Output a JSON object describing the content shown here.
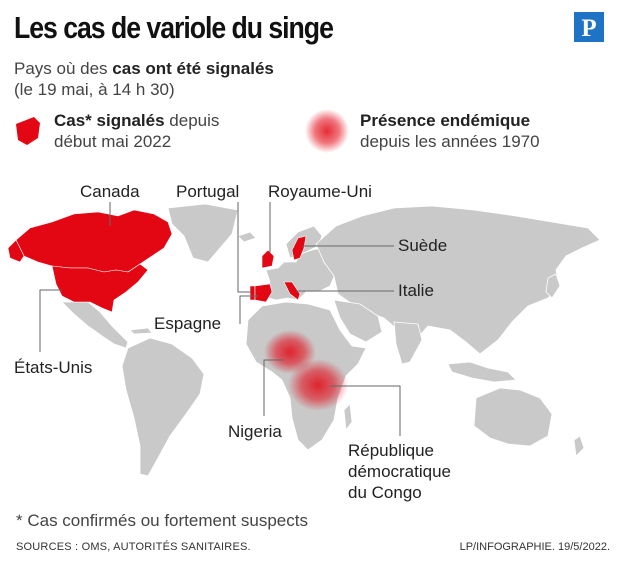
{
  "header": {
    "title": "Les cas de variole du singe",
    "subtitle_prefix": "Pays où des ",
    "subtitle_bold": "cas ont été signalés",
    "subtitle_line2": "(le 19 mai, à 14 h 30)",
    "logo_letter": "P"
  },
  "legend": {
    "cases_bold": "Cas* signalés",
    "cases_rest": " depuis",
    "cases_line2": "début mai 2022",
    "endemic_bold": "Présence endémique",
    "endemic_line2": "depuis les années 1970"
  },
  "countries": {
    "canada": "Canada",
    "portugal": "Portugal",
    "royaume_uni": "Royaume-Uni",
    "suede": "Suède",
    "italie": "Italie",
    "espagne": "Espagne",
    "etats_unis": "États-Unis",
    "nigeria": "Nigeria",
    "rdc_line1": "République",
    "rdc_line2": "démocratique",
    "rdc_line3": "du Congo"
  },
  "colors": {
    "cases": "#e30613",
    "land": "#c9c9c9",
    "border": "#ffffff",
    "leader": "#666666"
  },
  "footer": {
    "footnote": "* Cas confirmés ou fortement suspects",
    "sources": "SOURCES : OMS, AUTORITÉS SANITAIRES.",
    "credit": "LP/INFOGRAPHIE.  19/5/2022."
  }
}
